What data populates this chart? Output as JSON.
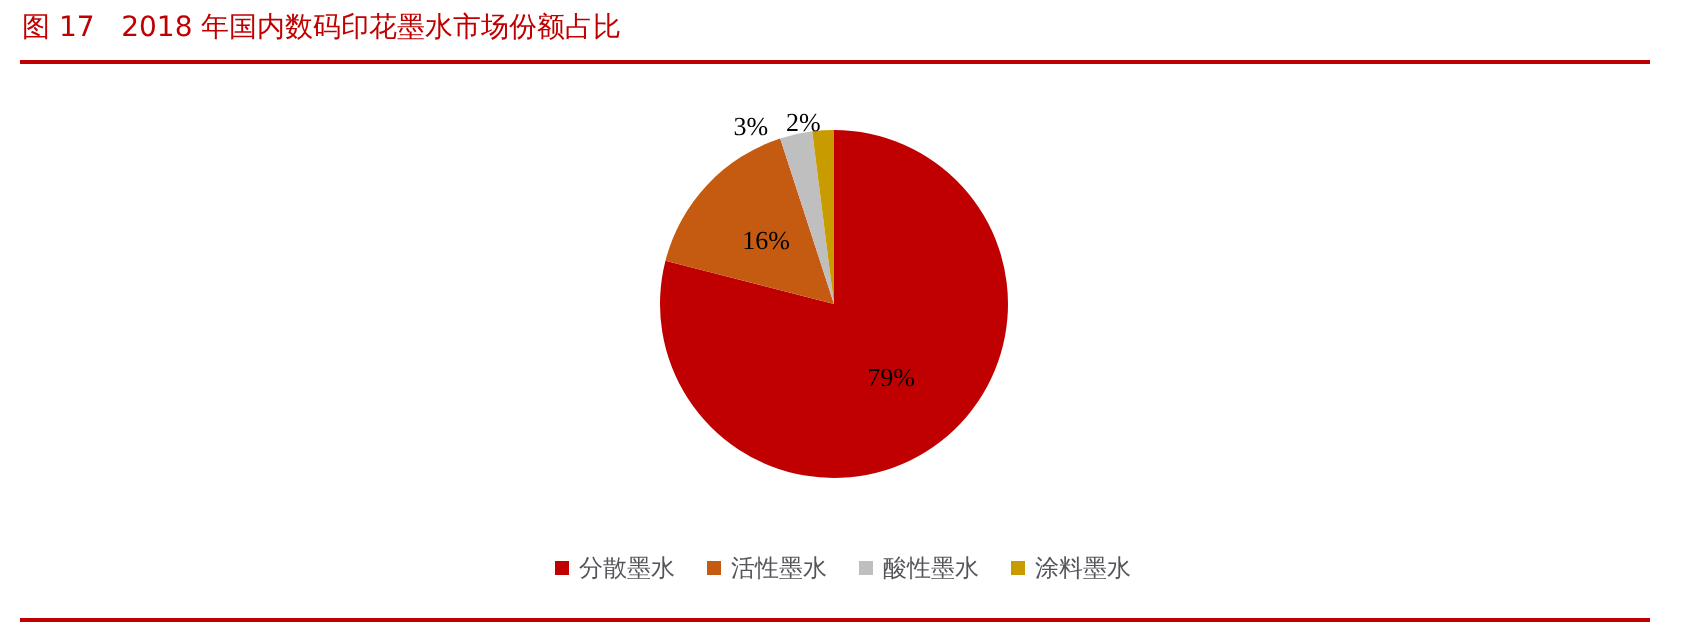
{
  "chart_data": {
    "type": "pie",
    "title": "图 17   2018 年国内数码印花墨水市场份额占比",
    "categories": [
      "分散墨水",
      "活性墨水",
      "酸性墨水",
      "涂料墨水"
    ],
    "values": [
      79,
      16,
      3,
      2
    ],
    "colors": [
      "#c00000",
      "#c55a11",
      "#bfbfbf",
      "#c89b00"
    ],
    "value_labels": [
      "79%",
      "16%",
      "3%",
      "2%"
    ],
    "legend": "bottom"
  }
}
